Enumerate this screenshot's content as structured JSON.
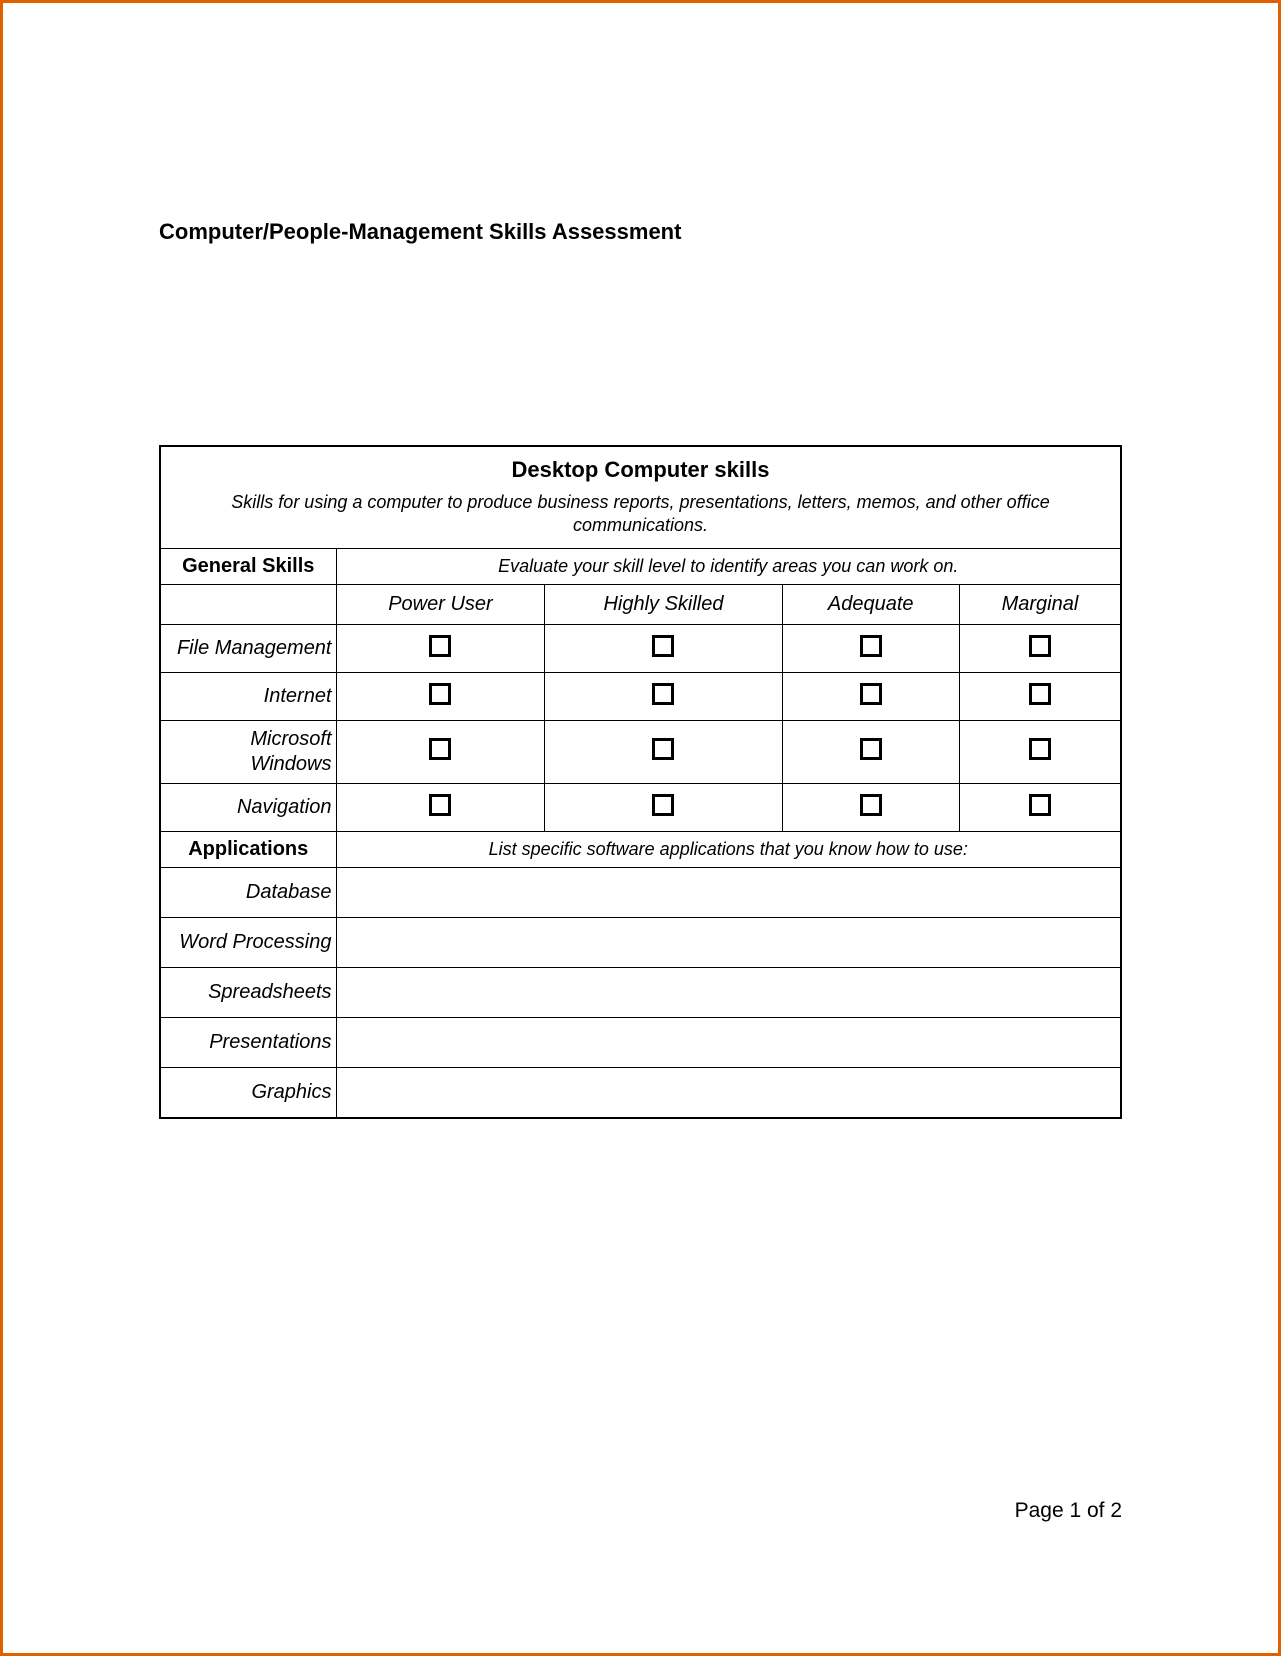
{
  "doc": {
    "title": "Computer/People-Management Skills Assessment",
    "page_footer": "Page 1 of 2"
  },
  "table": {
    "section_title": "Desktop Computer skills",
    "section_subtitle": "Skills for using a computer to produce business reports, presentations, letters, memos, and other office communications.",
    "general_skills": {
      "label": "General Skills",
      "instruction": "Evaluate your skill level to identify areas you can work on.",
      "columns": [
        "Power User",
        "Highly Skilled",
        "Adequate",
        "Marginal"
      ],
      "rows": [
        {
          "label": "File Management"
        },
        {
          "label": "Internet"
        },
        {
          "label": "Microsoft Windows"
        },
        {
          "label": "Navigation"
        }
      ]
    },
    "applications": {
      "label": "Applications",
      "instruction": "List specific software applications that you know how to use:",
      "rows": [
        {
          "label": "Database"
        },
        {
          "label": "Word Processing"
        },
        {
          "label": "Spreadsheets"
        },
        {
          "label": "Presentations"
        },
        {
          "label": "Graphics"
        }
      ]
    }
  },
  "colors": {
    "border": "#e06000",
    "text": "#000000",
    "background": "#ffffff"
  }
}
